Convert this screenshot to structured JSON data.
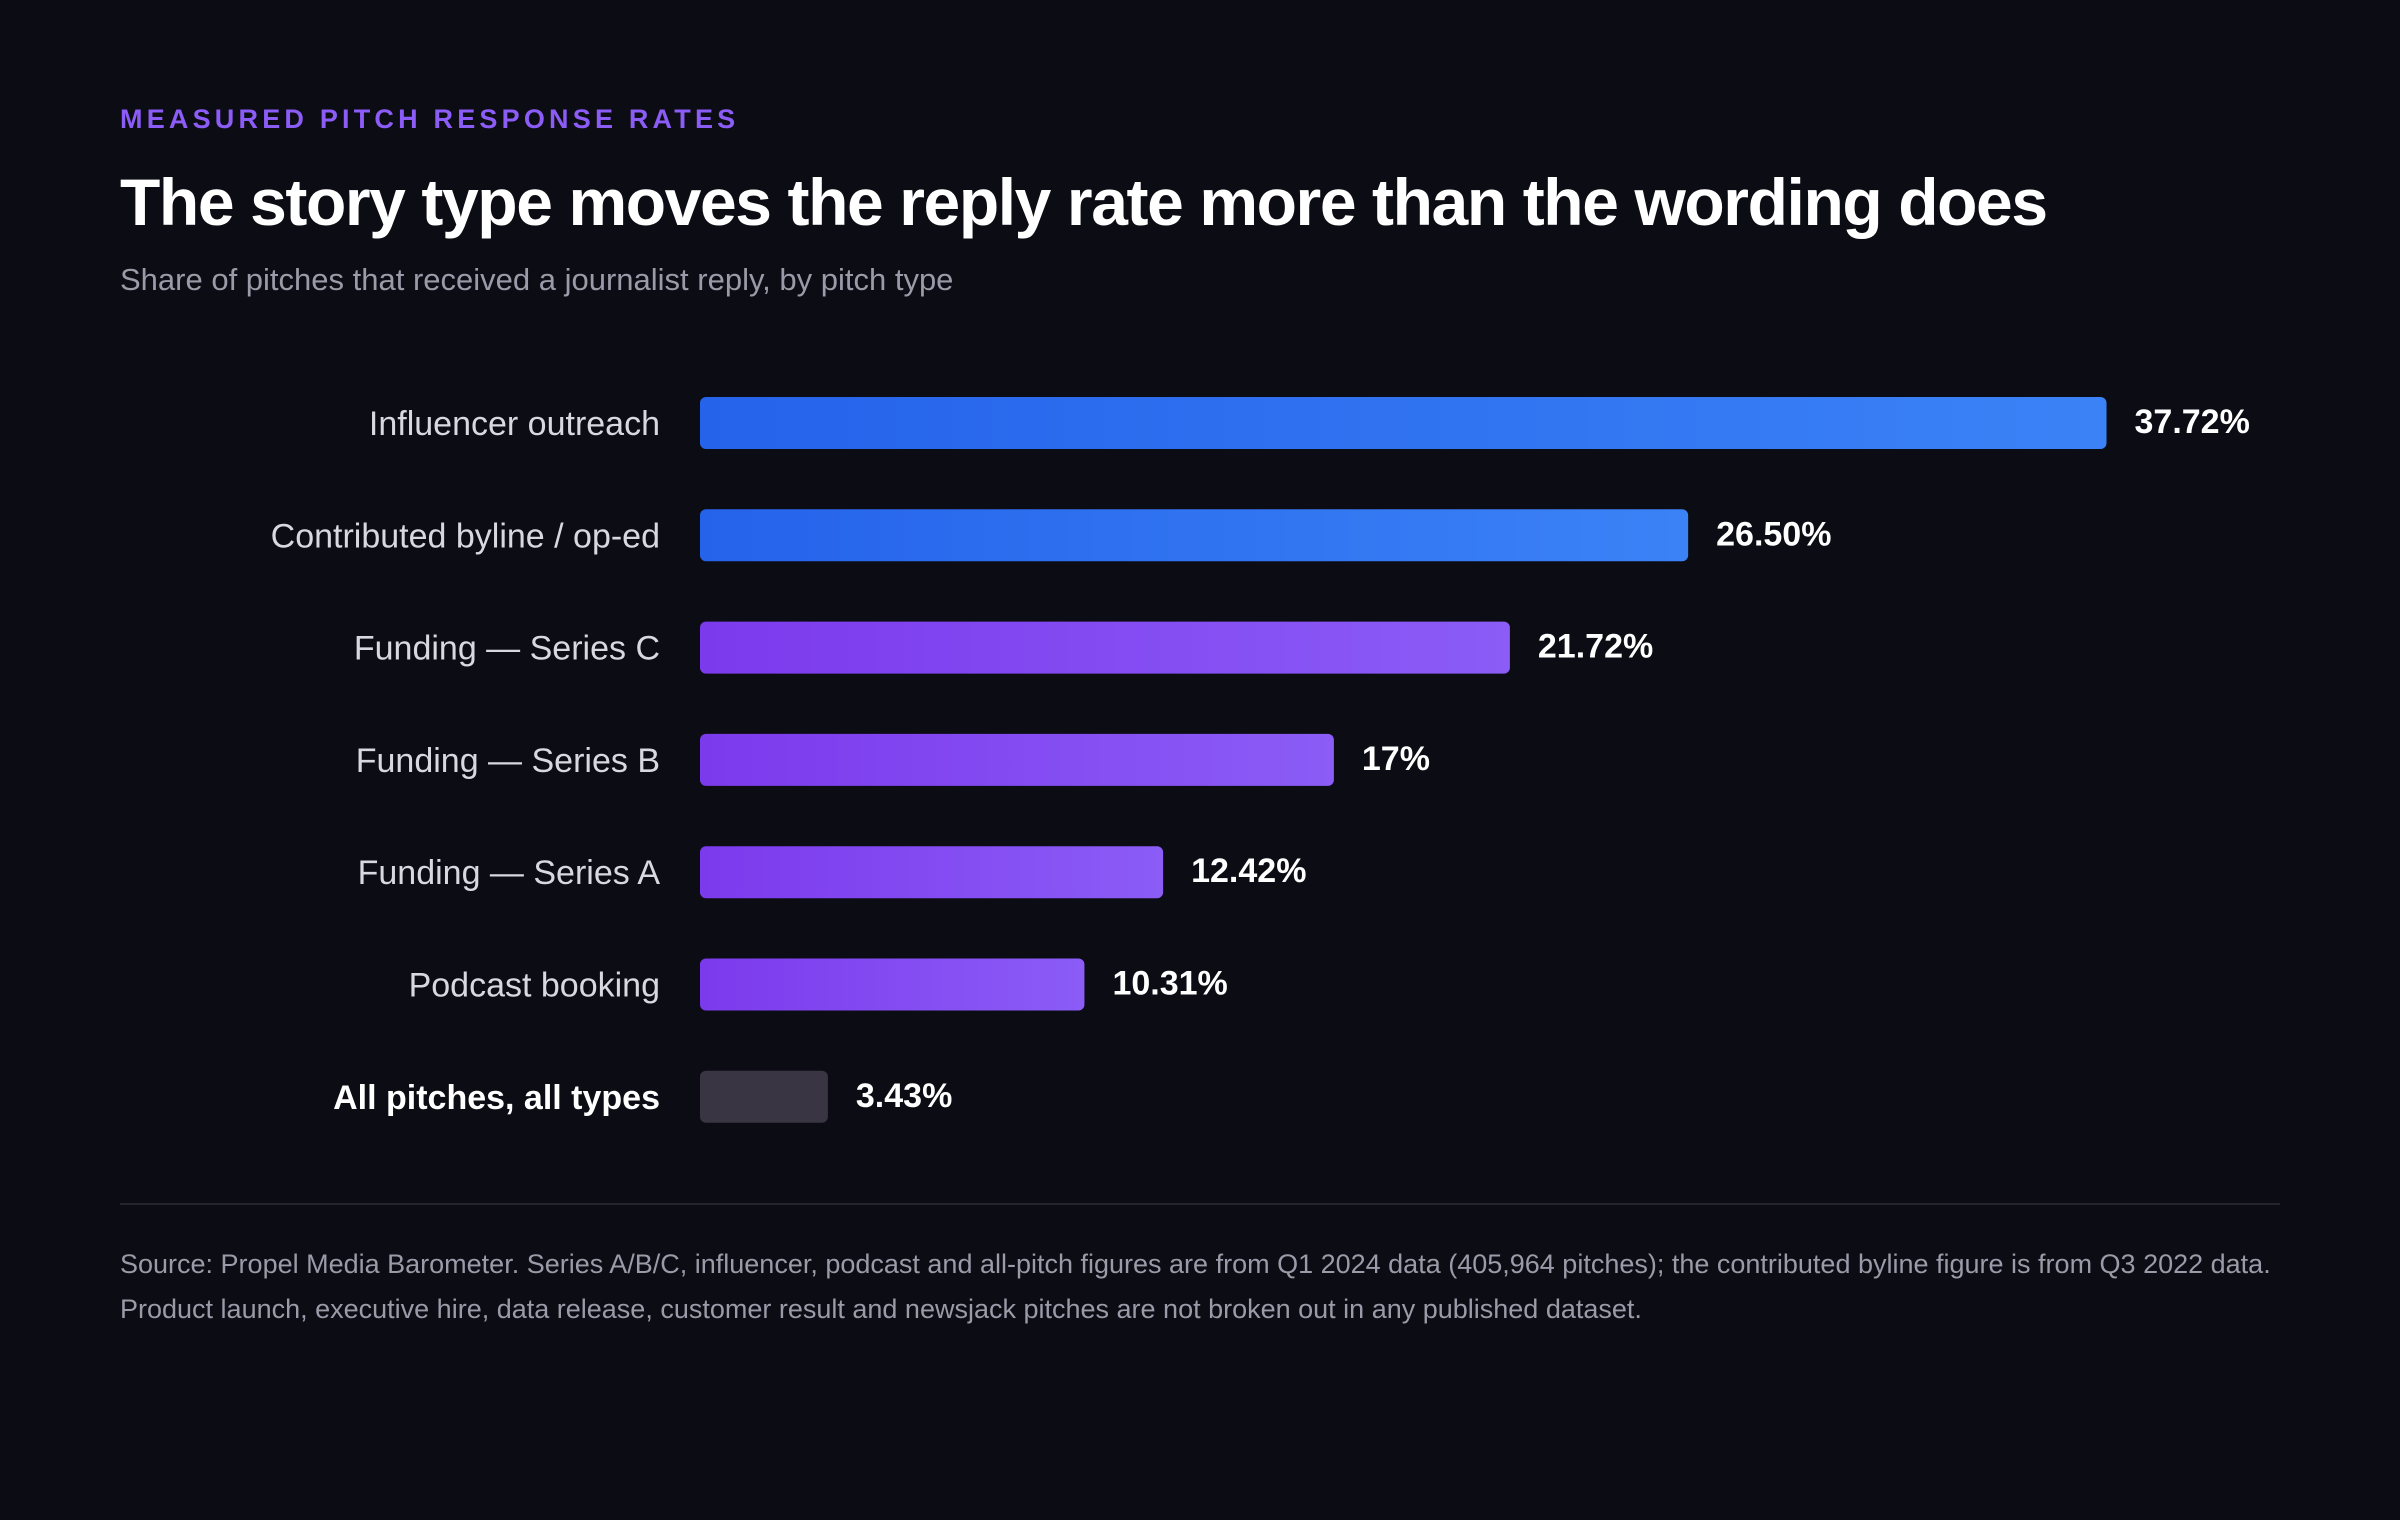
{
  "header": {
    "eyebrow": "MEASURED PITCH RESPONSE RATES",
    "title": "The story type moves the reply rate more than the wording does",
    "subtitle": "Share of pitches that received a journalist reply, by pitch type"
  },
  "chart_data": {
    "type": "bar",
    "orientation": "horizontal",
    "title": "The story type moves the reply rate more than the wording does",
    "subtitle": "Share of pitches that received a journalist reply, by pitch type",
    "unit": "%",
    "xlim": [
      0,
      41.3
    ],
    "grid": false,
    "categories": [
      "Influencer outreach",
      "Contributed byline / op-ed",
      "Funding — Series C",
      "Funding — Series B",
      "Funding — Series A",
      "Podcast booking",
      "All pitches, all types"
    ],
    "values": [
      37.72,
      26.5,
      21.72,
      17,
      12.42,
      10.31,
      3.43
    ],
    "value_labels": [
      "37.72%",
      "26.50%",
      "21.72%",
      "17%",
      "12.42%",
      "10.31%",
      "3.43%"
    ],
    "group": [
      "blue",
      "blue",
      "purple",
      "purple",
      "purple",
      "purple",
      "baseline"
    ],
    "emphasized": [
      false,
      false,
      false,
      false,
      false,
      false,
      true
    ]
  },
  "colors": {
    "background": "#0c0c14",
    "eyebrow": "#8b5cf6",
    "blue_start": "#2563eb",
    "blue_end": "#3b82f6",
    "purple_start": "#7c3aed",
    "purple_end": "#8b5cf6",
    "baseline": "#3a3542",
    "label": "#d8d8e0",
    "label_emphasis": "#ffffff",
    "value": "#ffffff",
    "muted": "#9a9aa8",
    "divider": "#24242e"
  },
  "footer": {
    "source": "Source: Propel Media Barometer. Series A/B/C, influencer, podcast and all-pitch figures are from Q1 2024 data (405,964 pitches); the contributed byline figure is from Q3 2022 data. Product launch, executive hire, data release, customer result and newsjack pitches are not broken out in any published dataset."
  }
}
